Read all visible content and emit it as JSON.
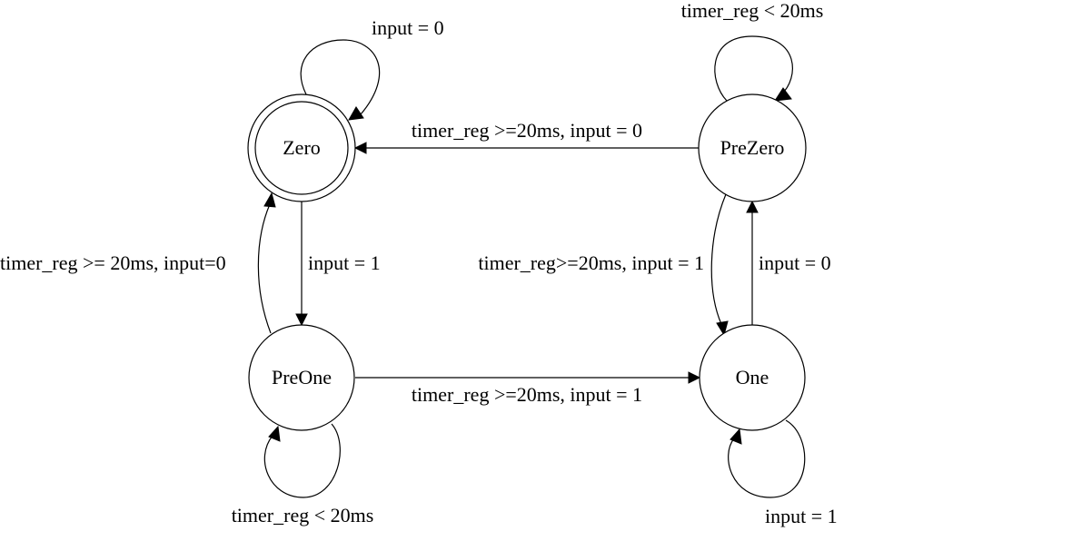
{
  "states": {
    "zero": {
      "label": "Zero",
      "accepting": true
    },
    "prezero": {
      "label": "PreZero",
      "accepting": false
    },
    "preone": {
      "label": "PreOne",
      "accepting": false
    },
    "one": {
      "label": "One",
      "accepting": false
    }
  },
  "transitions": {
    "zero_self": "input = 0",
    "prezero_self": "timer_reg < 20ms",
    "prezero_to_zero": "timer_reg >=20ms, input = 0",
    "zero_to_preone": "input = 1",
    "preone_to_zero": "timer_reg >= 20ms, input=0",
    "prezero_to_one": "timer_reg>=20ms, input = 1",
    "one_to_prezero": "input = 0",
    "preone_to_one": "timer_reg >=20ms, input = 1",
    "preone_self": "timer_reg < 20ms",
    "one_self": "input = 1"
  },
  "colors": {
    "stroke": "#000000",
    "background": "#ffffff"
  }
}
